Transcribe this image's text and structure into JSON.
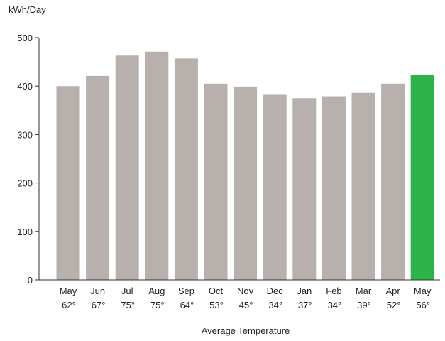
{
  "chart_data": {
    "type": "bar",
    "ylabel": "kWh/Day",
    "xlabel": "Average Temperature",
    "ylim": [
      0,
      500
    ],
    "yticks": [
      0,
      100,
      200,
      300,
      400,
      500
    ],
    "categories": [
      "May",
      "Jun",
      "Jul",
      "Aug",
      "Sep",
      "Oct",
      "Nov",
      "Dec",
      "Jan",
      "Feb",
      "Mar",
      "Apr",
      "May"
    ],
    "temperatures": [
      "62°",
      "67°",
      "75°",
      "75°",
      "64°",
      "53°",
      "45°",
      "34°",
      "37°",
      "34°",
      "39°",
      "52°",
      "56°"
    ],
    "values": [
      400,
      421,
      463,
      471,
      457,
      405,
      399,
      382,
      375,
      379,
      386,
      405,
      423
    ],
    "bar_color": "#b7b0ad",
    "highlight_color": "#2db34a",
    "highlight_index": 12,
    "grid": false
  }
}
